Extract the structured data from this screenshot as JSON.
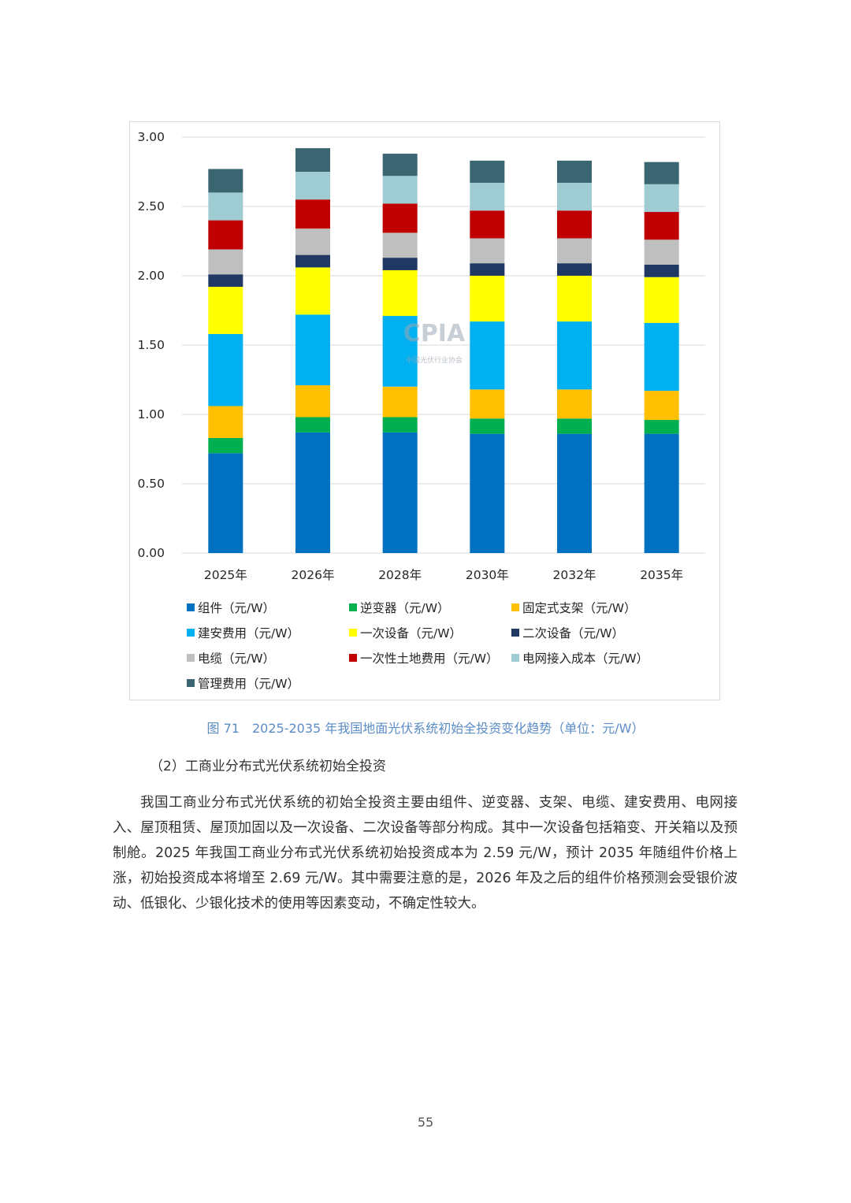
{
  "chart_data": {
    "type": "bar",
    "stacked": true,
    "categories": [
      "2025年",
      "2026年",
      "2028年",
      "2030年",
      "2032年",
      "2035年"
    ],
    "ylim": [
      0,
      3.0
    ],
    "yticks": [
      "0.00",
      "0.50",
      "1.00",
      "1.50",
      "2.00",
      "2.50",
      "3.00"
    ],
    "ytick_values": [
      0,
      0.5,
      1.0,
      1.5,
      2.0,
      2.5,
      3.0
    ],
    "grid": true,
    "legend_position": "bottom",
    "series": [
      {
        "name": "组件（元/W）",
        "color": "#0070c0",
        "values": [
          0.72,
          0.87,
          0.87,
          0.86,
          0.86,
          0.86
        ]
      },
      {
        "name": "逆变器（元/W）",
        "color": "#00b050",
        "values": [
          0.11,
          0.11,
          0.11,
          0.11,
          0.11,
          0.1
        ]
      },
      {
        "name": "固定式支架（元/W）",
        "color": "#ffc000",
        "values": [
          0.23,
          0.23,
          0.22,
          0.21,
          0.21,
          0.21
        ]
      },
      {
        "name": "建安费用（元/W）",
        "color": "#00b0f0",
        "values": [
          0.52,
          0.51,
          0.51,
          0.49,
          0.49,
          0.49
        ]
      },
      {
        "name": "一次设备（元/W）",
        "color": "#ffff00",
        "values": [
          0.34,
          0.34,
          0.33,
          0.33,
          0.33,
          0.33
        ]
      },
      {
        "name": "二次设备（元/W）",
        "color": "#203864",
        "values": [
          0.09,
          0.09,
          0.09,
          0.09,
          0.09,
          0.09
        ]
      },
      {
        "name": "电缆（元/W）",
        "color": "#bfbfbf",
        "values": [
          0.18,
          0.19,
          0.18,
          0.18,
          0.18,
          0.18
        ]
      },
      {
        "name": "一次性土地费用（元/W）",
        "color": "#c00000",
        "values": [
          0.21,
          0.21,
          0.21,
          0.2,
          0.2,
          0.2
        ]
      },
      {
        "name": "电网接入成本（元/W）",
        "color": "#9fcbd3",
        "values": [
          0.2,
          0.2,
          0.2,
          0.2,
          0.2,
          0.2
        ]
      },
      {
        "name": "管理费用（元/W）",
        "color": "#3b6570",
        "values": [
          0.17,
          0.17,
          0.16,
          0.16,
          0.16,
          0.16
        ]
      }
    ]
  },
  "watermark": {
    "text": "CPIA",
    "org": "中国光伏行业协会"
  },
  "caption": "图 71　2025-2035 年我国地面光伏系统初始全投资变化趋势（单位：元/W）",
  "subheading": "（2）工商业分布式光伏系统初始全投资",
  "paragraph": "我国工商业分布式光伏系统的初始全投资主要由组件、逆变器、支架、电缆、建安费用、电网接入、屋顶租赁、屋顶加固以及一次设备、二次设备等部分构成。其中一次设备包括箱变、开关箱以及预制舱。2025 年我国工商业分布式光伏系统初始投资成本为 2.59 元/W，预计 2035 年随组件价格上涨，初始投资成本将增至 2.69 元/W。其中需要注意的是，2026 年及之后的组件价格预测会受银价波动、低银化、少银化技术的使用等因素变动，不确定性较大。",
  "page_number": "55"
}
